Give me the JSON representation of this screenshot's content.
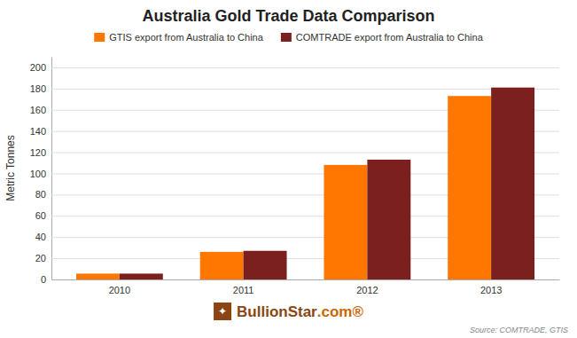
{
  "chart_data": {
    "type": "bar",
    "title": "Australia Gold Trade Data Comparison",
    "categories": [
      "2010",
      "2011",
      "2012",
      "2013"
    ],
    "series": [
      {
        "name": "GTIS export from Australia to China",
        "color": "#FF7700",
        "values": [
          5.5,
          26,
          108,
          173
        ]
      },
      {
        "name": "COMTRADE export from Australia to China",
        "color": "#7B1F1F",
        "values": [
          5.5,
          27,
          113,
          181
        ]
      }
    ],
    "ylabel": "Metric Tonnes",
    "ylim": [
      0,
      210
    ],
    "yticks": [
      0,
      20,
      40,
      60,
      80,
      100,
      120,
      140,
      160,
      180,
      200
    ],
    "grid": true,
    "legend": "top",
    "annotations": [
      {
        "text": "✦",
        "color": "#8B4513"
      },
      {
        "text": "BullionStar",
        "color": "#8B4513"
      },
      {
        "text": ".com®",
        "color": "#CC6600"
      },
      {
        "text": "Source: COMTRADE, GTIS"
      }
    ]
  }
}
